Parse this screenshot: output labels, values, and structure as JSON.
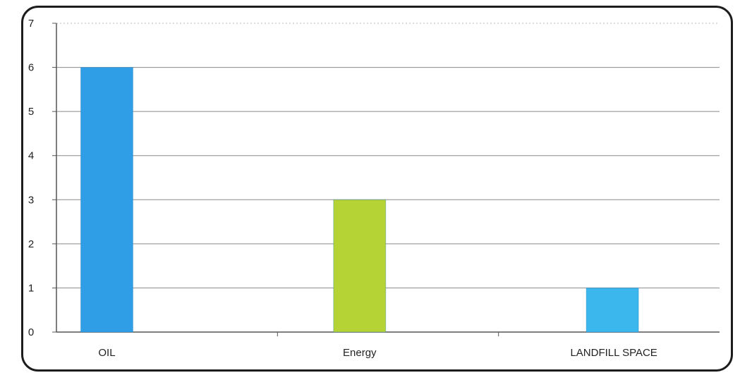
{
  "chart_data": {
    "type": "bar",
    "categories": [
      "OIL",
      "Energy",
      "LANDFILL SPACE"
    ],
    "values": [
      6,
      3,
      1
    ],
    "colors": [
      "#2f9ee6",
      "#b5d334",
      "#3cb7ee"
    ],
    "ylim": [
      0,
      7
    ],
    "yticks": [
      "0",
      "1",
      "2",
      "3",
      "4",
      "5",
      "6",
      "7"
    ],
    "grid": true,
    "title": "",
    "xlabel": "",
    "ylabel": ""
  }
}
